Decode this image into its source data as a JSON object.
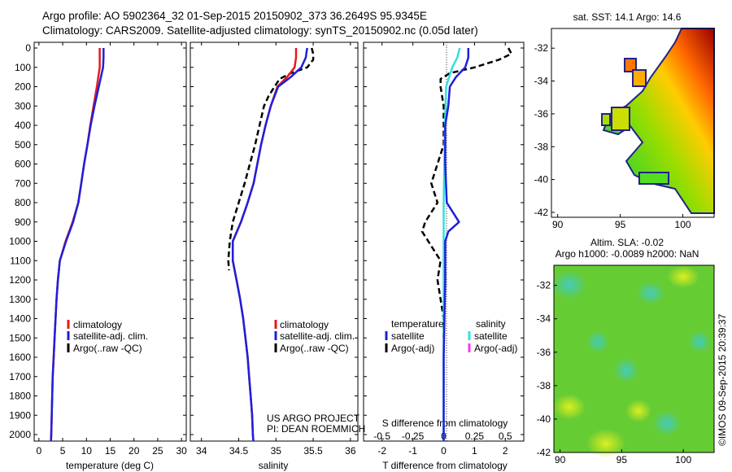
{
  "header": {
    "line1": "Argo profile: AO 5902364_32 01-Sep-2015 20150902_373 36.2649S 95.9345E",
    "line2": "Climatology: CARS2009. Satellite-adjusted climatology: synTS_20150902.nc (0.05d later)"
  },
  "depth_ticks": [
    "0",
    "100",
    "200",
    "300",
    "400",
    "500",
    "600",
    "700",
    "800",
    "900",
    "1000",
    "1100",
    "1200",
    "1300",
    "1400",
    "1500",
    "1600",
    "1700",
    "1800",
    "1900",
    "2000"
  ],
  "colors": {
    "climatology": "#e41a1c",
    "satellite": "#1f1fdb",
    "argo": "#000000",
    "argo_sal_adj": "#ff33ff",
    "satellite_sal": "#33e0e0"
  },
  "panel_temp": {
    "xlabel": "temperature (deg C)",
    "x_ticks": [
      "0",
      "5",
      "10",
      "15",
      "20",
      "25",
      "30"
    ],
    "legend": [
      "climatology",
      "satellite-adj. clim.",
      "Argo(..raw -QC)"
    ]
  },
  "panel_sal": {
    "xlabel": "salinity",
    "x_ticks": [
      "34",
      "34.5",
      "35",
      "35.5",
      "36"
    ],
    "legend": [
      "climatology",
      "satellite-adj. clim.",
      "Argo(..raw -QC)"
    ],
    "credit1": "US ARGO PROJECT",
    "credit2": "PI: DEAN ROEMMICH"
  },
  "panel_diff": {
    "xlabel": "T difference from climatology",
    "top_axis_label": "S difference from climatology",
    "t_ticks": [
      "-2",
      "-1",
      "0",
      "1",
      "2"
    ],
    "s_ticks": [
      "-0.5",
      "-0.25",
      "0",
      "0.25",
      "0.5"
    ],
    "legend_temp_title": "temperature",
    "legend_sal_title": "salinity",
    "legend_temp": [
      "satellite",
      "Argo(-adj)"
    ],
    "legend_sal": [
      "satellite",
      "Argo(-adj)"
    ]
  },
  "map_sst": {
    "title": "sat. SST: 14.1  Argo: 14.6",
    "y_ticks": [
      "-32",
      "-34",
      "-36",
      "-38",
      "-40",
      "-42"
    ],
    "x_ticks": [
      "90",
      "95",
      "100"
    ]
  },
  "map_sla": {
    "title1": "Altim. SLA: -0.02",
    "title2": "Argo h1000: -0.0089 h2000: NaN",
    "y_ticks": [
      "-32",
      "-34",
      "-36",
      "-38",
      "-40",
      "-42"
    ],
    "x_ticks": [
      "90",
      "95",
      "100"
    ]
  },
  "side_stamp": "©IMOS 09-Sep-2015 20:39:37",
  "chart_data": [
    {
      "type": "line",
      "ylabel": "",
      "xlabel": "temperature (deg C)",
      "xlim": [
        -1,
        31
      ],
      "ylim": [
        2050,
        0
      ],
      "series": [
        {
          "name": "climatology",
          "depth": [
            0,
            50,
            100,
            200,
            300,
            400,
            500,
            600,
            700,
            800,
            900,
            1000,
            1100,
            1200,
            1300,
            1400,
            1500,
            1600,
            1700,
            1800,
            1900,
            2000,
            2050
          ],
          "values": [
            12.8,
            12.8,
            12.8,
            12.2,
            11.5,
            10.8,
            10.2,
            9.5,
            8.9,
            8.3,
            7.1,
            5.6,
            4.4,
            4.0,
            3.7,
            3.5,
            3.3,
            3.1,
            2.9,
            2.8,
            2.7,
            2.6,
            2.5
          ]
        },
        {
          "name": "satellite-adj. clim.",
          "depth": [
            0,
            50,
            100,
            200,
            300,
            400,
            500,
            600,
            700,
            800,
            900,
            1000,
            1100,
            1200,
            1300,
            1400,
            1500,
            1600,
            1700,
            1800,
            1900,
            2000,
            2050
          ],
          "values": [
            13.6,
            13.6,
            13.5,
            12.6,
            11.7,
            10.9,
            10.2,
            9.5,
            8.9,
            8.3,
            7.2,
            5.7,
            4.4,
            4.0,
            3.7,
            3.5,
            3.3,
            3.1,
            2.9,
            2.8,
            2.7,
            2.6,
            2.5
          ]
        }
      ]
    },
    {
      "type": "line",
      "xlabel": "salinity",
      "xlim": [
        33.85,
        36.1
      ],
      "ylim": [
        2050,
        0
      ],
      "series": [
        {
          "name": "climatology",
          "depth": [
            0,
            50,
            100,
            150,
            200,
            300,
            400,
            500,
            600,
            700,
            800,
            900,
            1000,
            1100,
            1200,
            1300,
            1400,
            1500,
            1600,
            1700,
            1800,
            1900,
            2000,
            2050
          ],
          "values": [
            35.27,
            35.27,
            35.25,
            35.15,
            35.02,
            34.93,
            34.86,
            34.8,
            34.75,
            34.7,
            34.62,
            34.53,
            34.42,
            34.42,
            34.47,
            34.52,
            34.56,
            34.59,
            34.62,
            34.64,
            34.66,
            34.68,
            34.69,
            34.7
          ]
        },
        {
          "name": "satellite-adj. clim.",
          "depth": [
            0,
            50,
            100,
            150,
            200,
            300,
            400,
            500,
            600,
            700,
            800,
            900,
            1000,
            1100,
            1200,
            1300,
            1400,
            1500,
            1600,
            1700,
            1800,
            1900,
            2000,
            2050
          ],
          "values": [
            35.42,
            35.4,
            35.34,
            35.2,
            35.03,
            34.93,
            34.86,
            34.8,
            34.75,
            34.7,
            34.62,
            34.53,
            34.42,
            34.42,
            34.47,
            34.52,
            34.56,
            34.59,
            34.62,
            34.64,
            34.66,
            34.68,
            34.69,
            34.7
          ]
        },
        {
          "name": "Argo(..raw -QC)",
          "depth": [
            0,
            30,
            60,
            100,
            130,
            160,
            200,
            250,
            300,
            400,
            500,
            600,
            700,
            800,
            900,
            1000,
            1100,
            1150
          ],
          "values": [
            35.48,
            35.5,
            35.5,
            35.42,
            35.2,
            35.05,
            34.98,
            34.9,
            34.84,
            34.78,
            34.72,
            34.65,
            34.58,
            34.5,
            34.42,
            34.38,
            34.36,
            34.37
          ]
        }
      ]
    },
    {
      "type": "line",
      "xlabel": "T difference from climatology",
      "xlim": [
        -2.6,
        2.6
      ],
      "ylim": [
        2050,
        0
      ],
      "series": [
        {
          "name": "temperature satellite",
          "depth": [
            0,
            50,
            100,
            150,
            200,
            300,
            400,
            600,
            800,
            850,
            900,
            950,
            1000,
            1200,
            1600,
            2000,
            2050
          ],
          "values": [
            0.8,
            0.8,
            0.7,
            0.4,
            0.2,
            0.15,
            0.05,
            0.05,
            0.1,
            0.3,
            0.5,
            0.15,
            0.05,
            0.05,
            0.0,
            0.0,
            0.0
          ]
        },
        {
          "name": "temperature Argo(-adj)",
          "depth": [
            0,
            30,
            60,
            100,
            130,
            160,
            200,
            300,
            500,
            600,
            700,
            800,
            850,
            900,
            950,
            1000,
            1100,
            1200,
            1400,
            1500
          ],
          "values": [
            2.1,
            2.2,
            1.8,
            1.0,
            0.2,
            -0.1,
            -0.1,
            0.0,
            0.0,
            -0.2,
            -0.4,
            -0.2,
            -0.4,
            -0.6,
            -0.7,
            -0.5,
            -0.1,
            -0.2,
            0.0,
            0.0
          ]
        },
        {
          "name": "salinity satellite",
          "depth": [
            0,
            50,
            100,
            200,
            400,
            800,
            1200,
            1600,
            2000,
            2050
          ],
          "values": [
            0.13,
            0.11,
            0.07,
            0.02,
            0.01,
            0.0,
            0.0,
            0.0,
            0.0,
            0.0
          ]
        }
      ]
    }
  ]
}
